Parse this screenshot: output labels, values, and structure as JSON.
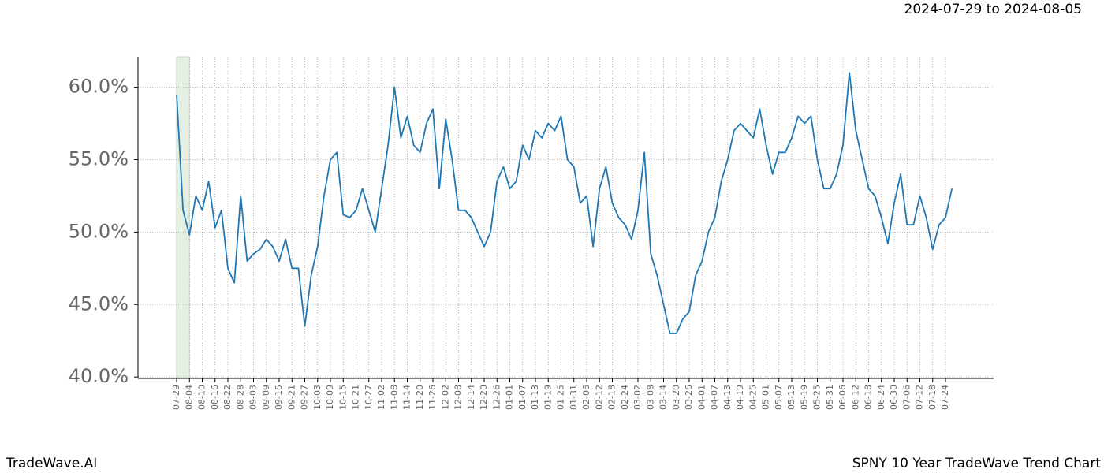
{
  "header": "2024-07-29 to 2024-08-05",
  "footer_left": "TradeWave.AI",
  "footer_right": "SPNY 10 Year TradeWave Trend Chart",
  "chart_data": {
    "type": "line",
    "categories": [
      "07-29",
      null,
      "08-04",
      null,
      "08-10",
      null,
      "08-16",
      null,
      "08-22",
      null,
      "08-28",
      null,
      "09-03",
      null,
      "09-09",
      null,
      "09-15",
      null,
      "09-21",
      null,
      "09-27",
      null,
      "10-03",
      null,
      "10-09",
      null,
      "10-15",
      null,
      "10-21",
      null,
      "10-27",
      null,
      "11-02",
      null,
      "11-08",
      null,
      "11-14",
      null,
      "11-20",
      null,
      "11-26",
      null,
      "12-02",
      null,
      "12-08",
      null,
      "12-14",
      null,
      "12-20",
      null,
      "12-26",
      null,
      "01-01",
      null,
      "01-07",
      null,
      "01-13",
      null,
      "01-19",
      null,
      "01-25",
      null,
      "01-31",
      null,
      "02-06",
      null,
      "02-12",
      null,
      "02-18",
      null,
      "02-24",
      null,
      "03-02",
      null,
      "03-08",
      null,
      "03-14",
      null,
      "03-20",
      null,
      "03-26",
      null,
      "04-01",
      null,
      "04-07",
      null,
      "04-13",
      null,
      "04-19",
      null,
      "04-25",
      null,
      "05-01",
      null,
      "05-07",
      null,
      "05-13",
      null,
      "05-19",
      null,
      "05-25",
      null,
      "05-31",
      null,
      "06-06",
      null,
      "06-12",
      null,
      "06-18",
      null,
      "06-24",
      null,
      "06-30",
      null,
      "07-06",
      null,
      "07-12",
      null,
      "07-18",
      null,
      "07-24",
      null
    ],
    "series": [
      {
        "color": "#1f77b4",
        "values": [
          59.5,
          51.5,
          49.8,
          52.5,
          51.5,
          53.5,
          50.3,
          51.5,
          47.5,
          46.5,
          52.5,
          48,
          48.5,
          48.8,
          49.5,
          49,
          48,
          49.5,
          47.5,
          47.5,
          43.5,
          47,
          49,
          52.5,
          55,
          55.5,
          51.2,
          51,
          51.5,
          53,
          51.5,
          50,
          53,
          56,
          60,
          56.5,
          58,
          56,
          55.5,
          57.5,
          58.5,
          53,
          57.8,
          55,
          51.5,
          51.5,
          51,
          50,
          49,
          50,
          53.5,
          54.5,
          53,
          53.5,
          56,
          55,
          57,
          56.5,
          57.5,
          57,
          58,
          55,
          54.5,
          52,
          52.5,
          49,
          53,
          54.5,
          52,
          51,
          50.5,
          49.5,
          51.5,
          55.5,
          48.5,
          47,
          45,
          43,
          43,
          44,
          44.5,
          47,
          48,
          50,
          51,
          53.5,
          55,
          57,
          57.5,
          57,
          56.5,
          58.5,
          56,
          54,
          55.5,
          55.5,
          56.5,
          58,
          57.5,
          58,
          55,
          53,
          53,
          54,
          56,
          61,
          57,
          55,
          53,
          52.5,
          51,
          49.2,
          52,
          54,
          50.5,
          50.5,
          52.5,
          51,
          48.8,
          50.5,
          51,
          53
        ]
      }
    ],
    "ylim": [
      39.9,
      62.1
    ],
    "yticks": [
      {
        "value": 40,
        "label": "40.0%"
      },
      {
        "value": 45,
        "label": "45.0%"
      },
      {
        "value": 50,
        "label": "50.0%"
      },
      {
        "value": 55,
        "label": "55.0%"
      },
      {
        "value": 60,
        "label": "60.0%"
      }
    ],
    "grid": true
  }
}
